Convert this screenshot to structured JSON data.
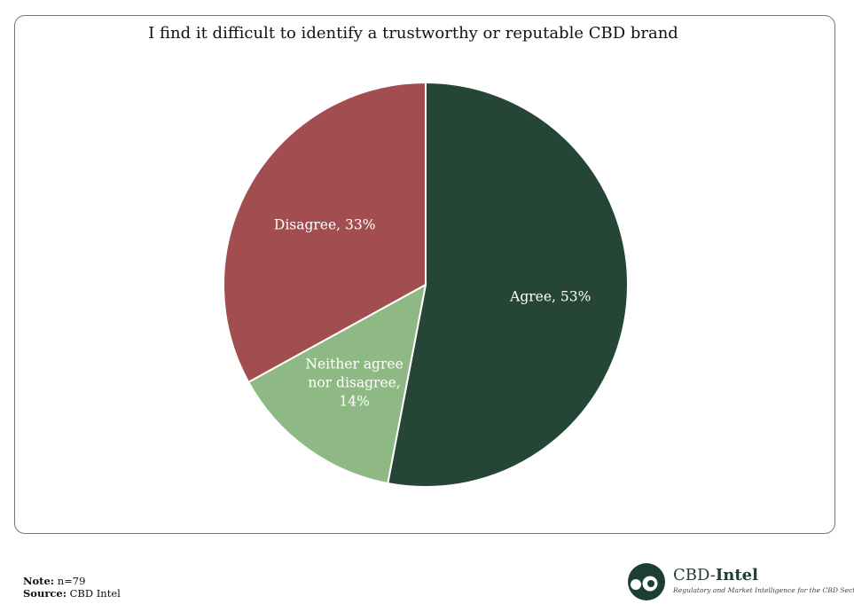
{
  "chart_data": {
    "type": "pie",
    "title": "I find it difficult to identify a trustworthy or reputable CBD brand",
    "slices": [
      {
        "name": "Agree",
        "value": 53,
        "color": "#254536",
        "label_lines": [
          "Agree, 53%"
        ]
      },
      {
        "name": "Neither agree nor disagree",
        "value": 14,
        "color": "#8fb984",
        "label_lines": [
          "Neither agree",
          "nor disagree,",
          "14%"
        ]
      },
      {
        "name": "Disagree",
        "value": 33,
        "color": "#a24e50",
        "label_lines": [
          "Disagree, 33%"
        ]
      }
    ]
  },
  "note": {
    "label": "Note:",
    "text": " n=79"
  },
  "source": {
    "label": "Source:",
    "text": " CBD Intel"
  },
  "logo": {
    "name_part1": "CBD-",
    "name_part2": "Intel",
    "tagline": "Regulatory and Market Intelligence for the CBD Sector"
  }
}
